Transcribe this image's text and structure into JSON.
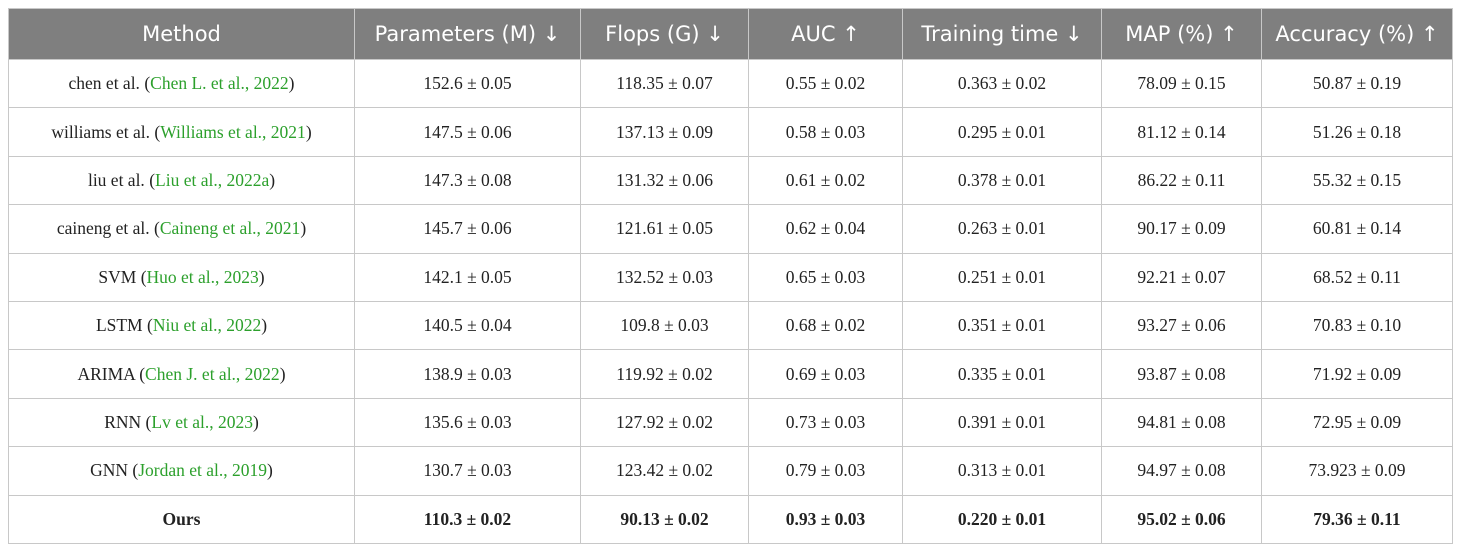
{
  "table": {
    "header": [
      "Method",
      "Parameters (M) ↓",
      "Flops (G) ↓",
      "AUC ↑",
      "Training time ↓",
      "MAP (%) ↑",
      "Accuracy (%) ↑"
    ],
    "parens": [
      "(",
      ")"
    ],
    "rows": [
      {
        "method": "chen et al.",
        "citation": "Chen L. et al., 2022",
        "cells": [
          "152.6 ± 0.05",
          "118.35 ± 0.07",
          "0.55 ± 0.02",
          "0.363 ± 0.02",
          "78.09 ± 0.15",
          "50.87 ± 0.19"
        ]
      },
      {
        "method": "williams et al.",
        "citation": "Williams et al., 2021",
        "cells": [
          "147.5 ± 0.06",
          "137.13 ± 0.09",
          "0.58 ± 0.03",
          "0.295 ± 0.01",
          "81.12 ± 0.14",
          "51.26 ± 0.18"
        ]
      },
      {
        "method": "liu et al.",
        "citation": "Liu et al., 2022a",
        "cells": [
          "147.3 ± 0.08",
          "131.32 ± 0.06",
          "0.61 ± 0.02",
          "0.378 ± 0.01",
          "86.22 ± 0.11",
          "55.32 ± 0.15"
        ]
      },
      {
        "method": "caineng et al.",
        "citation": "Caineng et al., 2021",
        "cells": [
          "145.7 ± 0.06",
          "121.61 ± 0.05",
          "0.62 ± 0.04",
          "0.263 ± 0.01",
          "90.17 ± 0.09",
          "60.81 ± 0.14"
        ]
      },
      {
        "method": "SVM",
        "citation": "Huo et al., 2023",
        "cells": [
          "142.1 ± 0.05",
          "132.52 ± 0.03",
          "0.65 ± 0.03",
          "0.251 ± 0.01",
          "92.21 ± 0.07",
          "68.52 ± 0.11"
        ]
      },
      {
        "method": "LSTM",
        "citation": "Niu et al., 2022",
        "cells": [
          "140.5 ± 0.04",
          "109.8 ± 0.03",
          "0.68 ± 0.02",
          "0.351 ± 0.01",
          "93.27 ± 0.06",
          "70.83 ± 0.10"
        ]
      },
      {
        "method": "ARIMA",
        "citation": "Chen J. et al., 2022",
        "cells": [
          "138.9 ± 0.03",
          "119.92 ± 0.02",
          "0.69 ± 0.03",
          "0.335 ± 0.01",
          "93.87 ± 0.08",
          "71.92 ± 0.09"
        ]
      },
      {
        "method": "RNN",
        "citation": "Lv et al., 2023",
        "cells": [
          "135.6 ± 0.03",
          "127.92 ± 0.02",
          "0.73 ± 0.03",
          "0.391 ± 0.01",
          "94.81 ± 0.08",
          "72.95 ± 0.09"
        ]
      },
      {
        "method": "GNN",
        "citation": "Jordan et al., 2019",
        "cells": [
          "130.7 ± 0.03",
          "123.42 ± 0.02",
          "0.79 ± 0.03",
          "0.313 ± 0.01",
          "94.97 ± 0.08",
          "73.923 ± 0.09"
        ]
      },
      {
        "method": "Ours",
        "cells": [
          "110.3 ± 0.02",
          "90.13 ± 0.02",
          "0.93 ± 0.03",
          "0.220 ± 0.01",
          "95.02 ± 0.06",
          "79.36 ± 0.11"
        ]
      }
    ]
  }
}
